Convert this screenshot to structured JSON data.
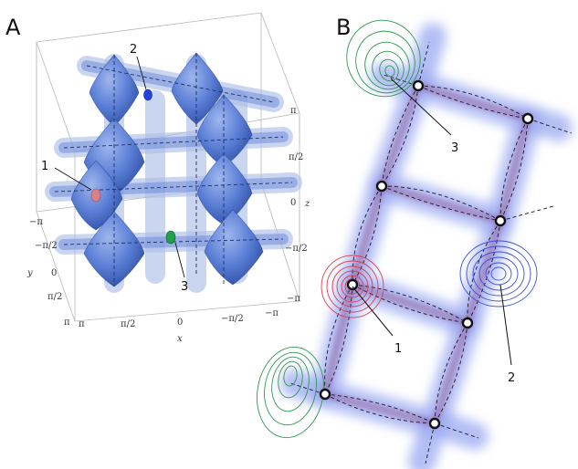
{
  "panels": {
    "a": {
      "letter": "A",
      "axes": {
        "x": {
          "name": "x",
          "ticks": [
            "π",
            "π/2",
            "0",
            "−π/2",
            "−π"
          ]
        },
        "y": {
          "name": "y",
          "ticks": [
            "−π",
            "−π/2",
            "0",
            "π/2",
            "π"
          ]
        },
        "z": {
          "name": "z",
          "ticks": [
            "π",
            "π/2",
            "0",
            "−π/2",
            "−π"
          ]
        }
      },
      "callouts": [
        "1",
        "2",
        "3"
      ]
    },
    "b": {
      "letter": "B",
      "callouts": [
        "1",
        "2",
        "3"
      ]
    }
  },
  "colors": {
    "surface": "#5b7fd6",
    "surface_dark": "#2f4fa6",
    "glow": "#9aa8f0",
    "core": "#8a3a7a",
    "contour_red": "#d94050",
    "contour_blue": "#3a50d6",
    "contour_green": "#2e9a4e",
    "marker_red": "#d9808a",
    "marker_blue": "#2244dd",
    "marker_green": "#22a04a"
  }
}
